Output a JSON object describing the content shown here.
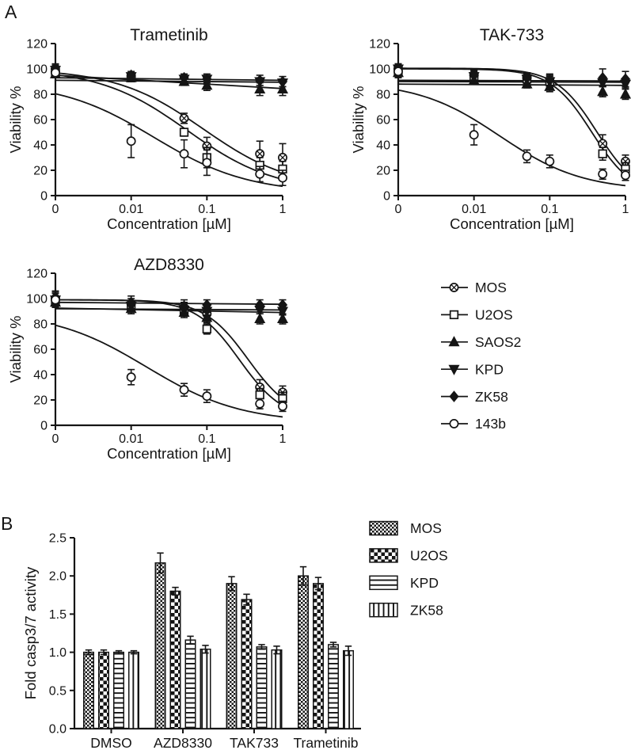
{
  "figure": {
    "panel_a_label": "A",
    "panel_b_label": "B"
  },
  "colors": {
    "ink": "#151515",
    "background": "#ffffff"
  },
  "legend_a": {
    "items": [
      {
        "label": "MOS",
        "marker": "circle-x",
        "filled": false
      },
      {
        "label": "U2OS",
        "marker": "square",
        "filled": false
      },
      {
        "label": "SAOS2",
        "marker": "triangle-up",
        "filled": true
      },
      {
        "label": "KPD",
        "marker": "triangle-down",
        "filled": true
      },
      {
        "label": "ZK58",
        "marker": "diamond",
        "filled": true
      },
      {
        "label": "143b",
        "marker": "circle",
        "filled": false
      }
    ]
  },
  "legend_b": {
    "items": [
      {
        "label": "MOS",
        "pattern": "checker-fine"
      },
      {
        "label": "U2OS",
        "pattern": "checker-coarse"
      },
      {
        "label": "KPD",
        "pattern": "lines-horizontal"
      },
      {
        "label": "ZK58",
        "pattern": "lines-vertical"
      }
    ]
  },
  "chart_data": [
    {
      "id": "trametinib",
      "type": "line",
      "title": "Trametinib",
      "xlabel": "Concentration [µM]",
      "ylabel": "Viability %",
      "xscale": "log-with-zero",
      "xtick_values": [
        0,
        0.01,
        0.1,
        1
      ],
      "xticks": [
        "0",
        "0.01",
        "0.1",
        "1"
      ],
      "ylim": [
        0,
        120
      ],
      "yticks": [
        0,
        20,
        40,
        60,
        80,
        100,
        120
      ],
      "x": [
        0,
        0.01,
        0.05,
        0.1,
        0.5,
        1
      ],
      "series": [
        {
          "name": "MOS",
          "marker": "circle-x",
          "filled": false,
          "values": [
            98,
            94,
            61,
            39,
            33,
            30
          ],
          "errors": [
            5,
            3,
            4,
            7,
            10,
            11
          ],
          "fit": {
            "kind": "logistic",
            "top": 100,
            "bottom": 5,
            "ec50": 0.09,
            "hill": 0.75
          }
        },
        {
          "name": "U2OS",
          "marker": "square",
          "filled": false,
          "values": [
            97,
            93,
            50,
            30,
            24,
            21
          ],
          "errors": [
            4,
            3,
            3,
            8,
            6,
            6
          ],
          "fit": {
            "kind": "logistic",
            "top": 100,
            "bottom": 3,
            "ec50": 0.055,
            "hill": 0.75
          }
        },
        {
          "name": "SAOS2",
          "marker": "triangle-up",
          "filled": true,
          "values": [
            96,
            93,
            90,
            87,
            84,
            84
          ],
          "errors": [
            3,
            3,
            3,
            4,
            5,
            5
          ],
          "fit": {
            "kind": "linear",
            "y0": 95,
            "y1": 84.5
          }
        },
        {
          "name": "KPD",
          "marker": "triangle-down",
          "filled": true,
          "values": [
            99,
            94,
            92,
            92,
            90,
            89
          ],
          "errors": [
            3,
            3,
            3,
            3,
            3,
            3
          ],
          "fit": {
            "kind": "linear",
            "y0": 93,
            "y1": 91
          }
        },
        {
          "name": "ZK58",
          "marker": "diamond",
          "filled": true,
          "values": [
            100,
            95,
            93,
            92,
            91,
            90
          ],
          "errors": [
            4,
            3,
            3,
            4,
            4,
            4
          ],
          "fit": {
            "kind": "linear",
            "y0": 91,
            "y1": 89.5
          }
        },
        {
          "name": "143b",
          "marker": "circle",
          "filled": false,
          "values": [
            97,
            43,
            33,
            26,
            17,
            14
          ],
          "errors": [
            4,
            13,
            11,
            10,
            6,
            6
          ],
          "fit": {
            "kind": "logistic",
            "top": 90,
            "bottom": 2,
            "ec50": 0.02,
            "hill": 0.7
          }
        }
      ]
    },
    {
      "id": "tak733",
      "type": "line",
      "title": "TAK-733",
      "xlabel": "Concentration [µM]",
      "ylabel": "Viability %",
      "xscale": "log-with-zero",
      "xtick_values": [
        0,
        0.01,
        0.1,
        1
      ],
      "xticks": [
        "0",
        "0.01",
        "0.1",
        "1"
      ],
      "ylim": [
        0,
        120
      ],
      "yticks": [
        0,
        20,
        40,
        60,
        80,
        100,
        120
      ],
      "x": [
        0,
        0.01,
        0.05,
        0.1,
        0.5,
        1
      ],
      "series": [
        {
          "name": "MOS",
          "marker": "circle-x",
          "filled": false,
          "values": [
            100,
            95,
            93,
            90,
            41,
            27
          ],
          "errors": [
            4,
            4,
            4,
            5,
            7,
            5
          ],
          "fit": {
            "kind": "logistic",
            "top": 100.5,
            "bottom": 0,
            "ec50": 0.42,
            "hill": 1.6
          }
        },
        {
          "name": "U2OS",
          "marker": "square",
          "filled": false,
          "values": [
            99,
            94,
            92,
            90,
            33,
            21
          ],
          "errors": [
            4,
            4,
            4,
            5,
            5,
            5
          ],
          "fit": {
            "kind": "logistic",
            "top": 100,
            "bottom": 0,
            "ec50": 0.36,
            "hill": 1.6
          }
        },
        {
          "name": "SAOS2",
          "marker": "triangle-up",
          "filled": true,
          "values": [
            97,
            91,
            88,
            86,
            82,
            80
          ],
          "errors": [
            4,
            3,
            3,
            4,
            4,
            4
          ],
          "fit": {
            "kind": "linear",
            "y0": 88,
            "y1": 87
          }
        },
        {
          "name": "KPD",
          "marker": "triangle-down",
          "filled": true,
          "values": [
            100,
            94,
            92,
            90,
            89,
            88
          ],
          "errors": [
            3,
            3,
            3,
            4,
            3,
            3
          ],
          "fit": {
            "kind": "linear",
            "y0": 90,
            "y1": 89.5
          }
        },
        {
          "name": "ZK58",
          "marker": "diamond",
          "filled": true,
          "values": [
            100,
            95,
            93,
            91,
            93,
            92
          ],
          "errors": [
            4,
            4,
            4,
            5,
            7,
            6
          ],
          "fit": {
            "kind": "linear",
            "y0": 91,
            "y1": 90.5
          }
        },
        {
          "name": "143b",
          "marker": "circle",
          "filled": false,
          "values": [
            98,
            48,
            31,
            27,
            17,
            16
          ],
          "errors": [
            4,
            8,
            5,
            5,
            4,
            4
          ],
          "fit": {
            "kind": "logistic",
            "top": 90,
            "bottom": 4,
            "ec50": 0.022,
            "hill": 0.8
          }
        }
      ]
    },
    {
      "id": "azd8330",
      "type": "line",
      "title": "AZD8330",
      "xlabel": "Concentration [µM]",
      "ylabel": "Viability %",
      "xscale": "log-with-zero",
      "xtick_values": [
        0,
        0.01,
        0.1,
        1
      ],
      "xticks": [
        "0",
        "0.01",
        "0.1",
        "1"
      ],
      "ylim": [
        0,
        120
      ],
      "yticks": [
        0,
        20,
        40,
        60,
        80,
        100,
        120
      ],
      "x": [
        0,
        0.01,
        0.05,
        0.1,
        0.5,
        1
      ],
      "series": [
        {
          "name": "MOS",
          "marker": "circle-x",
          "filled": false,
          "values": [
            100,
            96,
            92,
            88,
            30,
            26
          ],
          "errors": [
            5,
            4,
            5,
            6,
            6,
            5
          ],
          "fit": {
            "kind": "logistic",
            "top": 99,
            "bottom": 5,
            "ec50": 0.35,
            "hill": 1.5
          }
        },
        {
          "name": "U2OS",
          "marker": "square",
          "filled": false,
          "values": [
            98,
            94,
            91,
            76,
            24,
            21
          ],
          "errors": [
            4,
            4,
            4,
            4,
            5,
            5
          ],
          "fit": {
            "kind": "logistic",
            "top": 99,
            "bottom": 4,
            "ec50": 0.27,
            "hill": 1.5
          }
        },
        {
          "name": "SAOS2",
          "marker": "triangle-up",
          "filled": true,
          "values": [
            97,
            92,
            89,
            85,
            84,
            84
          ],
          "errors": [
            4,
            4,
            4,
            4,
            4,
            4
          ],
          "fit": {
            "kind": "linear",
            "y0": 92.5,
            "y1": 89
          }
        },
        {
          "name": "KPD",
          "marker": "triangle-down",
          "filled": true,
          "values": [
            99,
            94,
            91,
            90,
            91,
            90
          ],
          "errors": [
            3,
            3,
            3,
            3,
            3,
            3
          ],
          "fit": {
            "kind": "linear",
            "y0": 92,
            "y1": 91
          }
        },
        {
          "name": "ZK58",
          "marker": "diamond",
          "filled": true,
          "values": [
            101,
            97,
            94,
            95,
            95,
            95
          ],
          "errors": [
            5,
            5,
            5,
            4,
            4,
            4
          ],
          "fit": {
            "kind": "linear",
            "y0": 97,
            "y1": 95.5
          }
        },
        {
          "name": "143b",
          "marker": "circle",
          "filled": false,
          "values": [
            99,
            38,
            28,
            23,
            17,
            15
          ],
          "errors": [
            5,
            6,
            5,
            5,
            4,
            4
          ],
          "fit": {
            "kind": "logistic",
            "top": 90,
            "bottom": 2,
            "ec50": 0.016,
            "hill": 0.7
          }
        }
      ]
    },
    {
      "id": "casp37",
      "type": "bar",
      "title": "",
      "xlabel": "",
      "ylabel": "Fold casp3/7 activity",
      "ylim": [
        0,
        2.5
      ],
      "yticks": [
        "0.0",
        "0.5",
        "1.0",
        "1.5",
        "2.0",
        "2.5"
      ],
      "categories": [
        "DMSO",
        "AZD8330",
        "TAK733",
        "Trametinib"
      ],
      "series": [
        {
          "name": "MOS",
          "pattern": "checker-fine",
          "values": [
            1.0,
            2.17,
            1.9,
            2.0
          ],
          "errors": [
            0.03,
            0.13,
            0.09,
            0.12
          ]
        },
        {
          "name": "U2OS",
          "pattern": "checker-coarse",
          "values": [
            1.0,
            1.8,
            1.69,
            1.9
          ],
          "errors": [
            0.03,
            0.05,
            0.07,
            0.08
          ]
        },
        {
          "name": "KPD",
          "pattern": "lines-horizontal",
          "values": [
            1.0,
            1.16,
            1.07,
            1.1
          ],
          "errors": [
            0.02,
            0.05,
            0.03,
            0.03
          ]
        },
        {
          "name": "ZK58",
          "pattern": "lines-vertical",
          "values": [
            1.0,
            1.04,
            1.03,
            1.02
          ],
          "errors": [
            0.02,
            0.05,
            0.05,
            0.06
          ]
        }
      ]
    }
  ]
}
